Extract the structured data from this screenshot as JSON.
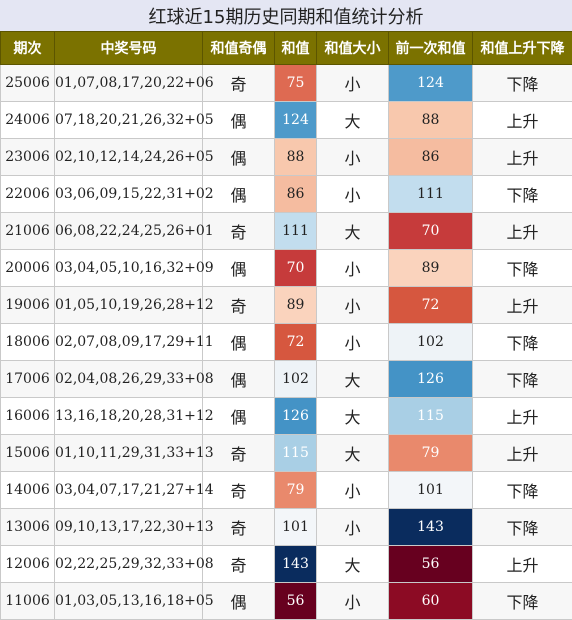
{
  "title": "红球近15期历史同期和值统计分析",
  "headers": [
    "期次",
    "中奖号码",
    "和值奇偶",
    "和值",
    "和值大小",
    "前一次和值",
    "和值上升下降"
  ],
  "rows": [
    {
      "period": "25006",
      "numbers": "01,07,08,17,20,22+06",
      "parity": "奇",
      "sum": 75,
      "size": "小",
      "prev_sum": 124,
      "trend": "下降"
    },
    {
      "period": "24006",
      "numbers": "07,18,20,21,26,32+05",
      "parity": "偶",
      "sum": 124,
      "size": "大",
      "prev_sum": 88,
      "trend": "上升"
    },
    {
      "period": "23006",
      "numbers": "02,10,12,14,24,26+05",
      "parity": "偶",
      "sum": 88,
      "size": "小",
      "prev_sum": 86,
      "trend": "上升"
    },
    {
      "period": "22006",
      "numbers": "03,06,09,15,22,31+02",
      "parity": "偶",
      "sum": 86,
      "size": "小",
      "prev_sum": 111,
      "trend": "下降"
    },
    {
      "period": "21006",
      "numbers": "06,08,22,24,25,26+01",
      "parity": "奇",
      "sum": 111,
      "size": "大",
      "prev_sum": 70,
      "trend": "上升"
    },
    {
      "period": "20006",
      "numbers": "03,04,05,10,16,32+09",
      "parity": "偶",
      "sum": 70,
      "size": "小",
      "prev_sum": 89,
      "trend": "下降"
    },
    {
      "period": "19006",
      "numbers": "01,05,10,19,26,28+12",
      "parity": "奇",
      "sum": 89,
      "size": "小",
      "prev_sum": 72,
      "trend": "上升"
    },
    {
      "period": "18006",
      "numbers": "02,07,08,09,17,29+11",
      "parity": "偶",
      "sum": 72,
      "size": "小",
      "prev_sum": 102,
      "trend": "下降"
    },
    {
      "period": "17006",
      "numbers": "02,04,08,26,29,33+08",
      "parity": "偶",
      "sum": 102,
      "size": "大",
      "prev_sum": 126,
      "trend": "下降"
    },
    {
      "period": "16006",
      "numbers": "13,16,18,20,28,31+12",
      "parity": "偶",
      "sum": 126,
      "size": "大",
      "prev_sum": 115,
      "trend": "上升"
    },
    {
      "period": "15006",
      "numbers": "01,10,11,29,31,33+13",
      "parity": "奇",
      "sum": 115,
      "size": "大",
      "prev_sum": 79,
      "trend": "上升"
    },
    {
      "period": "14006",
      "numbers": "03,04,07,17,21,27+14",
      "parity": "奇",
      "sum": 79,
      "size": "小",
      "prev_sum": 101,
      "trend": "下降"
    },
    {
      "period": "13006",
      "numbers": "09,10,13,17,22,30+13",
      "parity": "奇",
      "sum": 101,
      "size": "小",
      "prev_sum": 143,
      "trend": "下降"
    },
    {
      "period": "12006",
      "numbers": "02,22,25,29,32,33+08",
      "parity": "奇",
      "sum": 143,
      "size": "大",
      "prev_sum": 56,
      "trend": "上升"
    },
    {
      "period": "11006",
      "numbers": "01,03,05,13,16,18+05",
      "parity": "偶",
      "sum": 56,
      "size": "小",
      "prev_sum": 60,
      "trend": "下降"
    }
  ],
  "colors": {
    "header_bg": "#7b7200",
    "header_text": "#ffffff",
    "title_bg": "#e4e6f3",
    "value_scale": {
      "56": "#67001f",
      "60": "#8c0b24",
      "70": "#c63b3b",
      "72": "#d6573f",
      "75": "#de6a52",
      "79": "#e9896c",
      "86": "#f5bca0",
      "88": "#f8c8ad",
      "89": "#fad3bd",
      "101": "#f3f6f9",
      "102": "#eef3f7",
      "111": "#c2ddee",
      "115": "#a9cfe5",
      "124": "#4e9aca",
      "126": "#4493c6",
      "143": "#0a2c5e"
    }
  }
}
